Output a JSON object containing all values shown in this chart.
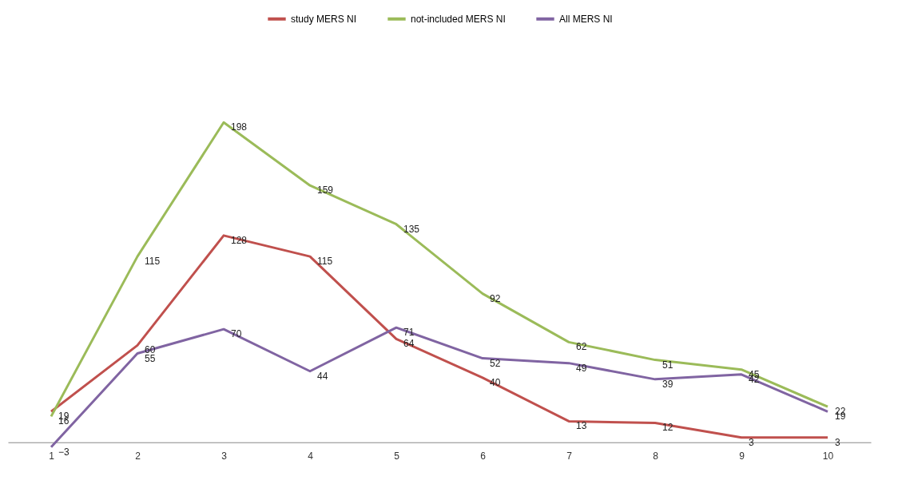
{
  "chart_data": {
    "type": "line",
    "categories": [
      "1",
      "2",
      "3",
      "4",
      "5",
      "6",
      "7",
      "8",
      "9",
      "10"
    ],
    "series": [
      {
        "name": "study MERS NI",
        "color": "#c0504d",
        "values": [
          19,
          60,
          128,
          115,
          64,
          40,
          13,
          12,
          3,
          3
        ]
      },
      {
        "name": "not-included MERS NI",
        "color": "#9bbb59",
        "values": [
          16,
          115,
          198,
          159,
          135,
          92,
          62,
          51,
          45,
          22
        ]
      },
      {
        "name": "All MERS NI",
        "color": "#8064a2",
        "values": [
          -3,
          55,
          70,
          44,
          71,
          52,
          49,
          39,
          42,
          19
        ]
      }
    ],
    "data_labels": true,
    "grid": false,
    "legend": "top",
    "marker": "none",
    "line_style": "solid"
  }
}
